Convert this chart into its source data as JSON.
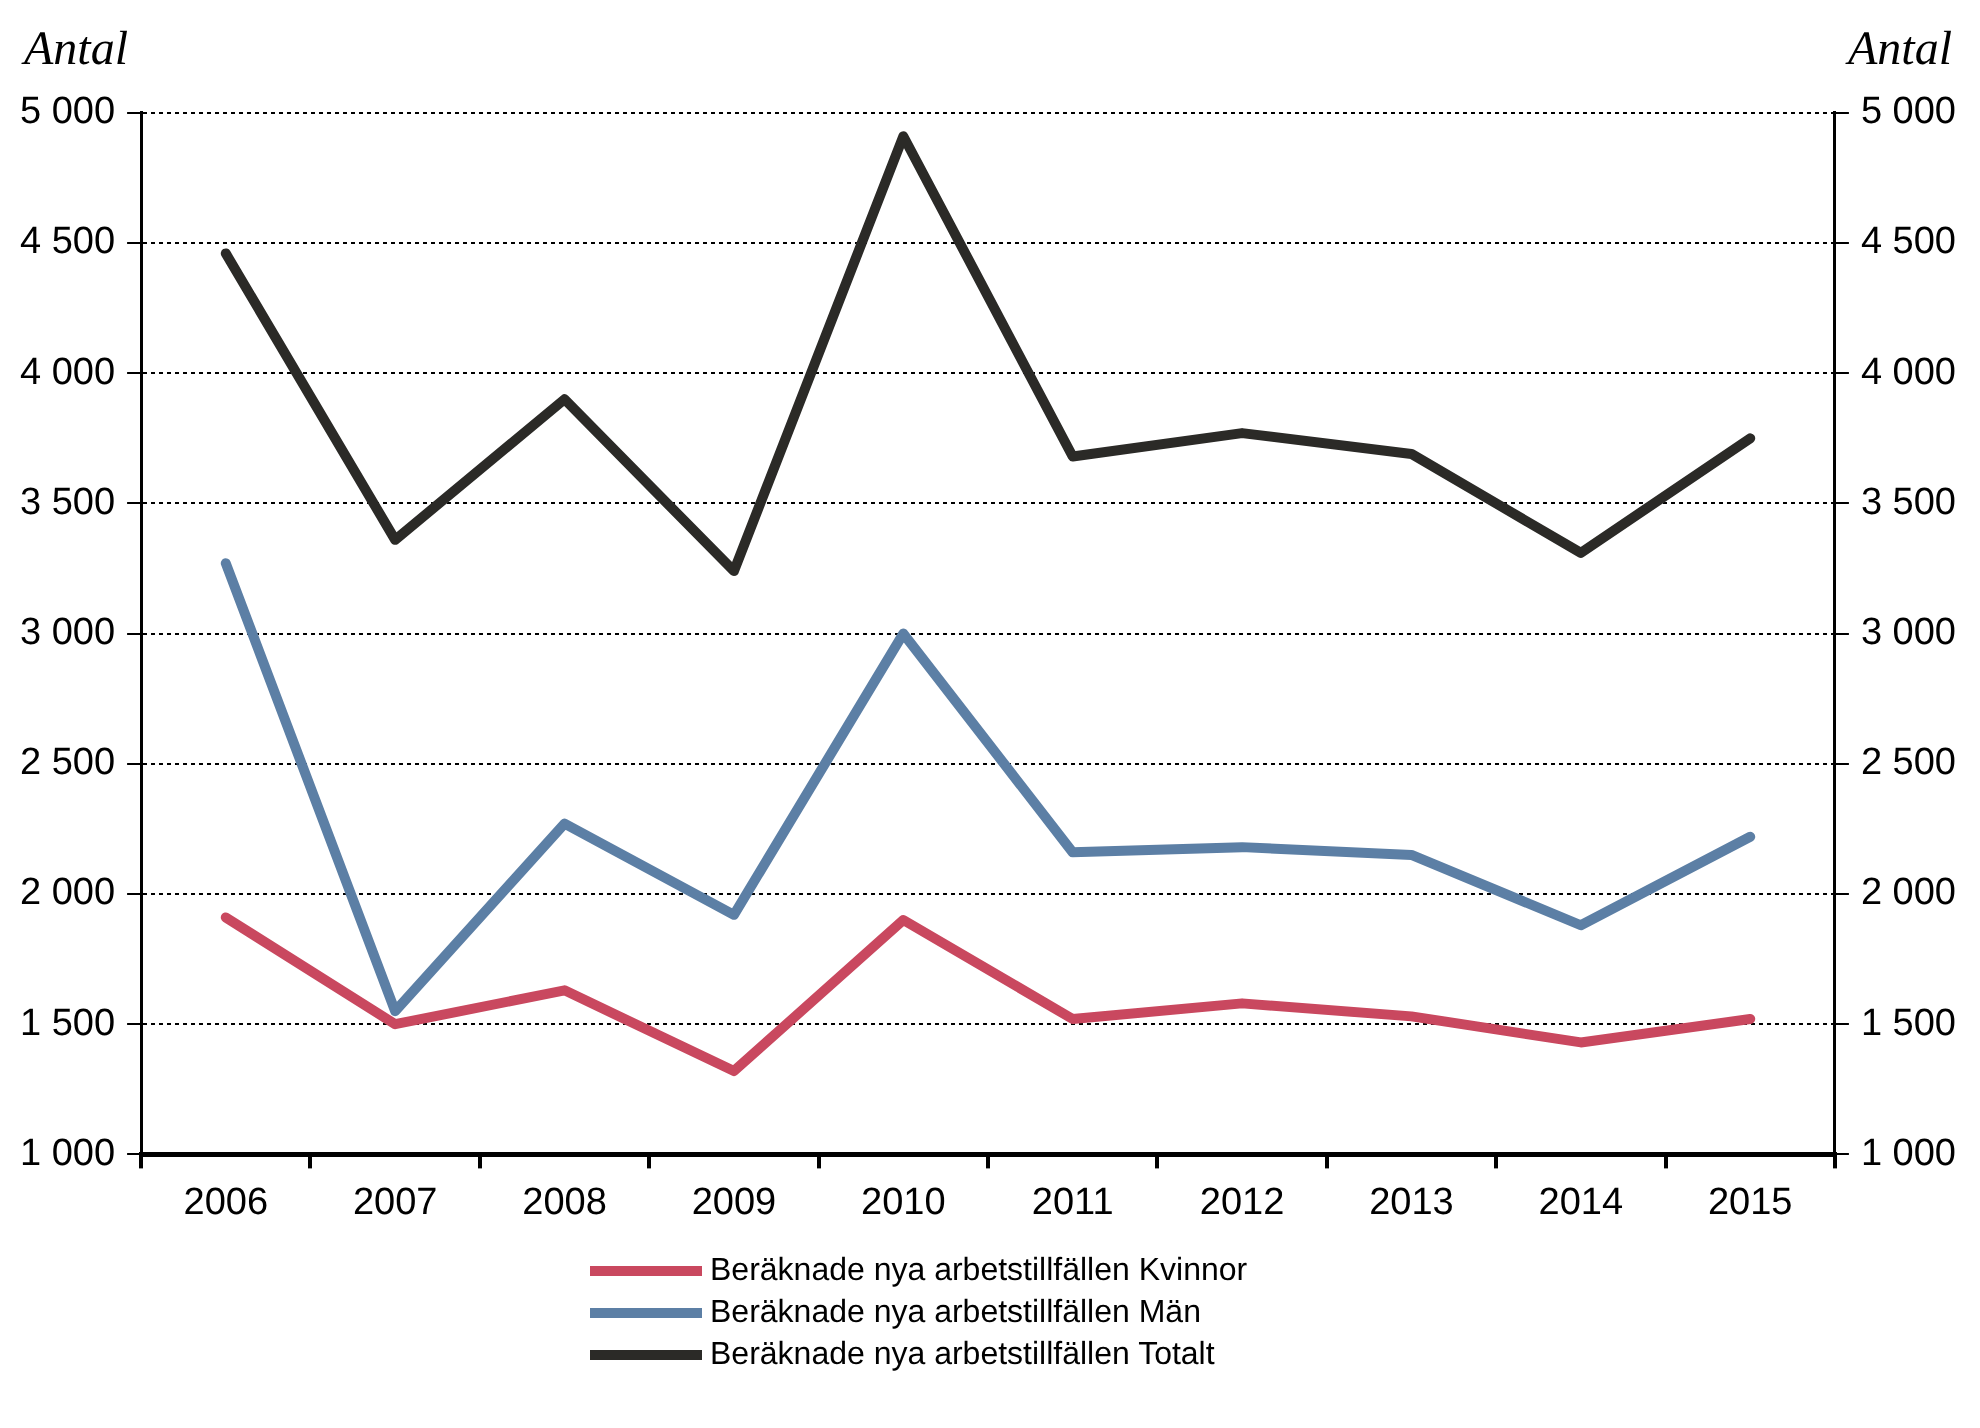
{
  "chart_data": {
    "type": "line",
    "ylabel": "Antal",
    "y2label": "Antal",
    "categories": [
      "2006",
      "2007",
      "2008",
      "2009",
      "2010",
      "2011",
      "2012",
      "2013",
      "2014",
      "2015"
    ],
    "series": [
      {
        "name": "Beräknade nya arbetstillfällen Kvinnor",
        "color": "#c9485f",
        "values": [
          1910,
          1500,
          1630,
          1320,
          1900,
          1520,
          1580,
          1530,
          1430,
          1520
        ]
      },
      {
        "name": "Beräknade nya arbetstillfällen Män",
        "color": "#5c7fa5",
        "values": [
          3270,
          1550,
          2270,
          1920,
          3000,
          2160,
          2180,
          2150,
          1880,
          2220
        ]
      },
      {
        "name": "Beräknade nya arbetstillfällen Totalt",
        "color": "#2b2a27",
        "values": [
          4460,
          3360,
          3900,
          3240,
          4910,
          3680,
          3770,
          3690,
          3310,
          3750
        ]
      }
    ],
    "ylim": [
      1000,
      5000
    ],
    "yticks": [
      {
        "value": 1000,
        "label": "1 000"
      },
      {
        "value": 1500,
        "label": "1 500"
      },
      {
        "value": 2000,
        "label": "2 000"
      },
      {
        "value": 2500,
        "label": "2 500"
      },
      {
        "value": 3000,
        "label": "3 000"
      },
      {
        "value": 3500,
        "label": "3 500"
      },
      {
        "value": 4000,
        "label": "4 000"
      },
      {
        "value": 4500,
        "label": "4 500"
      },
      {
        "value": 5000,
        "label": "5 000"
      }
    ],
    "y2lim": [
      1000,
      5000
    ],
    "y2ticks": [
      {
        "value": 1000,
        "label": "1 000"
      },
      {
        "value": 1500,
        "label": "1 500"
      },
      {
        "value": 2000,
        "label": "2 000"
      },
      {
        "value": 2500,
        "label": "2 500"
      },
      {
        "value": 3000,
        "label": "3 000"
      },
      {
        "value": 3500,
        "label": "3 500"
      },
      {
        "value": 4000,
        "label": "4 000"
      },
      {
        "value": 4500,
        "label": "4 500"
      },
      {
        "value": 5000,
        "label": "5 000"
      }
    ],
    "grid": "y",
    "legend": "bottom",
    "marker": "none",
    "line_style": "solid"
  }
}
